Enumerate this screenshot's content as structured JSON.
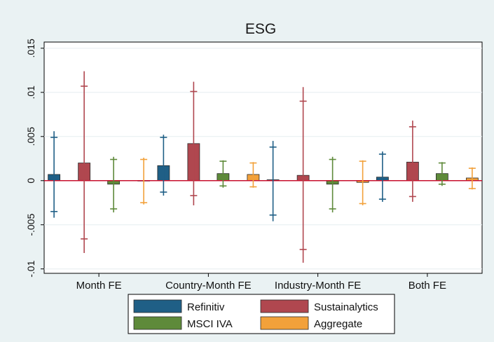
{
  "chart_data": {
    "type": "bar",
    "title": "ESG",
    "xlabel": "",
    "ylabel": "",
    "categories": [
      "Month FE",
      "Country-Month FE",
      "Industry-Month FE",
      "Both FE"
    ],
    "ylim": [
      -0.0105,
      0.0157
    ],
    "yticks": [
      {
        "value": 0.015,
        "label": ".015"
      },
      {
        "value": 0.01,
        "label": ".01"
      },
      {
        "value": 0.005,
        "label": ".005"
      },
      {
        "value": 0,
        "label": "0"
      },
      {
        "value": -0.005,
        "label": "-.005"
      },
      {
        "value": -0.01,
        "label": "-.01"
      }
    ],
    "reference_line": {
      "value": 0,
      "color": "#c8102e"
    },
    "grid": true,
    "legend_position": "bottom",
    "series": [
      {
        "name": "Refinitiv",
        "color": "#1f5f86",
        "values": [
          0.0007,
          0.0017,
          0.0001,
          0.0004
        ],
        "ci90": [
          [
            -0.0035,
            0.0049
          ],
          [
            -0.0013,
            0.0049
          ],
          [
            -0.0039,
            0.0038
          ],
          [
            -0.0021,
            0.003
          ]
        ],
        "ci95": [
          [
            -0.0042,
            0.0056
          ],
          [
            -0.0017,
            0.0052
          ],
          [
            -0.0046,
            0.0045
          ],
          [
            -0.0024,
            0.0033
          ]
        ]
      },
      {
        "name": "Sustainalytics",
        "color": "#b0474f",
        "values": [
          0.002,
          0.0042,
          0.0006,
          0.0021
        ],
        "ci90": [
          [
            -0.0066,
            0.0107
          ],
          [
            -0.0017,
            0.0101
          ],
          [
            -0.0078,
            0.009
          ],
          [
            -0.0018,
            0.0061
          ]
        ],
        "ci95": [
          [
            -0.0082,
            0.0124
          ],
          [
            -0.0028,
            0.0112
          ],
          [
            -0.0093,
            0.0106
          ],
          [
            -0.0024,
            0.0068
          ]
        ]
      },
      {
        "name": "MSCI IVA",
        "color": "#5e8a3a",
        "values": [
          -0.0004,
          0.0008,
          -0.0004,
          0.0008
        ],
        "ci90": [
          [
            -0.0032,
            0.0024
          ],
          [
            -0.0006,
            0.0022
          ],
          [
            -0.0032,
            0.0024
          ],
          [
            -0.0004,
            0.002
          ]
        ],
        "ci95": [
          [
            -0.0036,
            0.0027
          ],
          [
            -0.0008,
            0.0023
          ],
          [
            -0.0036,
            0.0027
          ],
          [
            -0.0006,
            0.0021
          ]
        ]
      },
      {
        "name": "Aggregate",
        "color": "#f2a13a",
        "values": [
          0.0,
          0.0007,
          -0.0002,
          0.0003
        ],
        "ci90": [
          [
            -0.0025,
            0.0024
          ],
          [
            -0.0007,
            0.002
          ],
          [
            -0.0026,
            0.0022
          ],
          [
            -0.0009,
            0.0014
          ]
        ],
        "ci95": [
          [
            -0.0027,
            0.0026
          ],
          [
            -0.0008,
            0.0021
          ],
          [
            -0.0028,
            0.0023
          ],
          [
            -0.001,
            0.0015
          ]
        ]
      }
    ]
  }
}
